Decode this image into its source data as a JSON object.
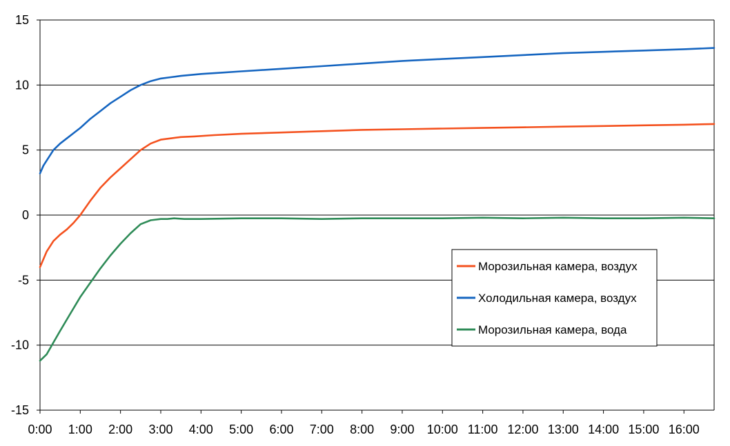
{
  "chart_data": {
    "type": "line",
    "title": "",
    "xlabel": "",
    "ylabel": "",
    "x_unit": "minutes",
    "xlim": [
      0,
      1005
    ],
    "ylim": [
      -15,
      15
    ],
    "y_ticks": [
      15,
      10,
      5,
      0,
      -5,
      -10,
      -15
    ],
    "x_ticks": [
      "0:00",
      "1:00",
      "2:00",
      "3:00",
      "4:00",
      "5:00",
      "6:00",
      "7:00",
      "8:00",
      "9:00",
      "10:00",
      "11:00",
      "12:00",
      "13:00",
      "14:00",
      "15:00",
      "16:00"
    ],
    "grid": "horizontal",
    "legend_position": "right-middle",
    "series": [
      {
        "name": "Морозильная камера, воздух",
        "color": "#f4511e",
        "x": [
          0,
          10,
          20,
          30,
          40,
          50,
          60,
          75,
          90,
          105,
          120,
          135,
          150,
          165,
          180,
          195,
          210,
          230,
          260,
          300,
          360,
          420,
          480,
          540,
          600,
          660,
          720,
          780,
          840,
          900,
          960,
          1005
        ],
        "y": [
          -4.0,
          -2.8,
          -2.0,
          -1.5,
          -1.1,
          -0.6,
          0.0,
          1.1,
          2.1,
          2.9,
          3.6,
          4.3,
          5.0,
          5.5,
          5.8,
          5.9,
          6.0,
          6.05,
          6.15,
          6.25,
          6.35,
          6.45,
          6.55,
          6.6,
          6.65,
          6.7,
          6.75,
          6.8,
          6.85,
          6.9,
          6.95,
          7.0
        ]
      },
      {
        "name": "Холодильная камера, воздух",
        "color": "#1565c0",
        "x": [
          0,
          5,
          10,
          15,
          20,
          30,
          40,
          50,
          60,
          75,
          90,
          105,
          120,
          135,
          150,
          165,
          180,
          195,
          210,
          240,
          270,
          300,
          360,
          420,
          480,
          540,
          600,
          660,
          720,
          780,
          840,
          900,
          960,
          1005
        ],
        "y": [
          3.2,
          3.8,
          4.2,
          4.6,
          5.0,
          5.5,
          5.9,
          6.3,
          6.7,
          7.4,
          8.0,
          8.6,
          9.1,
          9.6,
          10.0,
          10.3,
          10.5,
          10.6,
          10.7,
          10.85,
          10.95,
          11.05,
          11.25,
          11.45,
          11.65,
          11.85,
          12.0,
          12.15,
          12.3,
          12.45,
          12.55,
          12.65,
          12.75,
          12.85
        ]
      },
      {
        "name": "Морозильная камера, вода",
        "color": "#2e8b57",
        "x": [
          0,
          10,
          20,
          30,
          45,
          60,
          75,
          90,
          105,
          120,
          135,
          150,
          165,
          180,
          190,
          200,
          215,
          240,
          300,
          360,
          420,
          480,
          540,
          600,
          660,
          720,
          780,
          840,
          900,
          960,
          1005
        ],
        "y": [
          -11.2,
          -10.7,
          -9.8,
          -8.9,
          -7.6,
          -6.3,
          -5.2,
          -4.1,
          -3.1,
          -2.2,
          -1.4,
          -0.7,
          -0.4,
          -0.3,
          -0.3,
          -0.25,
          -0.3,
          -0.3,
          -0.25,
          -0.25,
          -0.3,
          -0.25,
          -0.25,
          -0.25,
          -0.2,
          -0.25,
          -0.2,
          -0.25,
          -0.25,
          -0.2,
          -0.25
        ]
      }
    ]
  }
}
